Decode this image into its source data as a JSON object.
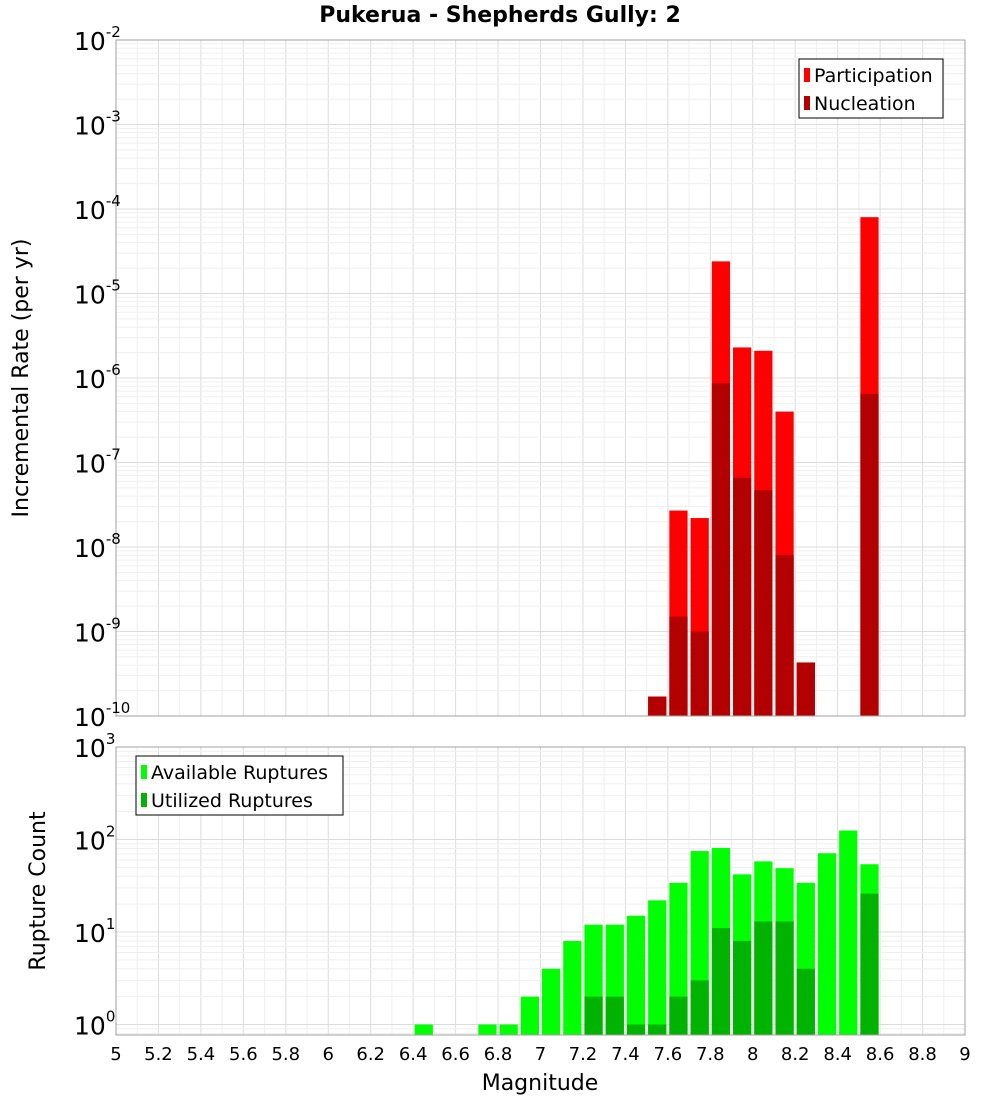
{
  "title": "Pukerua - Shepherds Gully: 2",
  "colors": {
    "participation": "#ff0000",
    "nucleation": "#b30000",
    "available": "#00ff00",
    "utilized": "#00b300",
    "grid": "#e6e6e6",
    "frame": "#a0a0a0"
  },
  "xaxis": {
    "label": "Magnitude",
    "range": [
      5,
      9
    ],
    "ticks": [
      "5",
      "5.2",
      "5.4",
      "5.6",
      "5.8",
      "6",
      "6.2",
      "6.4",
      "6.6",
      "6.8",
      "7",
      "7.2",
      "7.4",
      "7.6",
      "7.8",
      "8",
      "8.2",
      "8.4",
      "8.6",
      "8.8",
      "9"
    ],
    "bin_width": 0.1
  },
  "chart_data": [
    {
      "type": "bar",
      "title": "Pukerua - Shepherds Gully: 2",
      "ylabel": "Incremental Rate (per yr)",
      "xlabel": "Magnitude",
      "yscale": "log",
      "ylim": [
        1e-10,
        0.01
      ],
      "ytick_labels": [
        {
          "base": "10",
          "exp": "-10"
        },
        {
          "base": "10",
          "exp": "-9"
        },
        {
          "base": "10",
          "exp": "-8"
        },
        {
          "base": "10",
          "exp": "-7"
        },
        {
          "base": "10",
          "exp": "-6"
        },
        {
          "base": "10",
          "exp": "-5"
        },
        {
          "base": "10",
          "exp": "-4"
        },
        {
          "base": "10",
          "exp": "-3"
        },
        {
          "base": "10",
          "exp": "-2"
        }
      ],
      "legend": "top-right",
      "grid": true,
      "series": [
        {
          "name": "Participation",
          "color": "#ff0000",
          "x": [
            7.55,
            7.65,
            7.75,
            7.85,
            7.95,
            8.05,
            8.15,
            8.25,
            8.55
          ],
          "values": [
            1.7e-10,
            2.7e-08,
            2.2e-08,
            2.4e-05,
            2.3e-06,
            2.1e-06,
            4e-07,
            4.3e-10,
            8e-05
          ]
        },
        {
          "name": "Nucleation",
          "color": "#b30000",
          "x": [
            7.55,
            7.65,
            7.75,
            7.85,
            7.95,
            8.05,
            8.15,
            8.25,
            8.55
          ],
          "values": [
            1.7e-10,
            1.5e-09,
            1e-09,
            8.7e-07,
            6.6e-08,
            4.7e-08,
            8e-09,
            4.3e-10,
            6.5e-07
          ]
        }
      ]
    },
    {
      "type": "bar",
      "ylabel": "Rupture Count",
      "xlabel": "Magnitude",
      "yscale": "log",
      "ylim": [
        0.77,
        1000
      ],
      "ytick_labels": [
        {
          "base": "10",
          "exp": "0"
        },
        {
          "base": "10",
          "exp": "1"
        },
        {
          "base": "10",
          "exp": "2"
        },
        {
          "base": "10",
          "exp": "3"
        }
      ],
      "legend": "top-left",
      "grid": true,
      "series": [
        {
          "name": "Available Ruptures",
          "color": "#00ff00",
          "x": [
            6.45,
            6.75,
            6.85,
            6.95,
            7.05,
            7.15,
            7.25,
            7.35,
            7.45,
            7.55,
            7.65,
            7.75,
            7.85,
            7.95,
            8.05,
            8.15,
            8.25,
            8.35,
            8.45,
            8.55
          ],
          "values": [
            1,
            1,
            1,
            2,
            4,
            8,
            12,
            12,
            15,
            22,
            34,
            75,
            81,
            42,
            58,
            49,
            34,
            71,
            125,
            54
          ]
        },
        {
          "name": "Utilized Ruptures",
          "color": "#00b300",
          "x": [
            7.25,
            7.35,
            7.45,
            7.55,
            7.65,
            7.75,
            7.85,
            7.95,
            8.05,
            8.15,
            8.25,
            8.55
          ],
          "values": [
            2,
            2,
            1,
            1,
            2,
            3,
            11,
            8,
            13,
            13,
            4,
            26
          ]
        }
      ]
    }
  ]
}
